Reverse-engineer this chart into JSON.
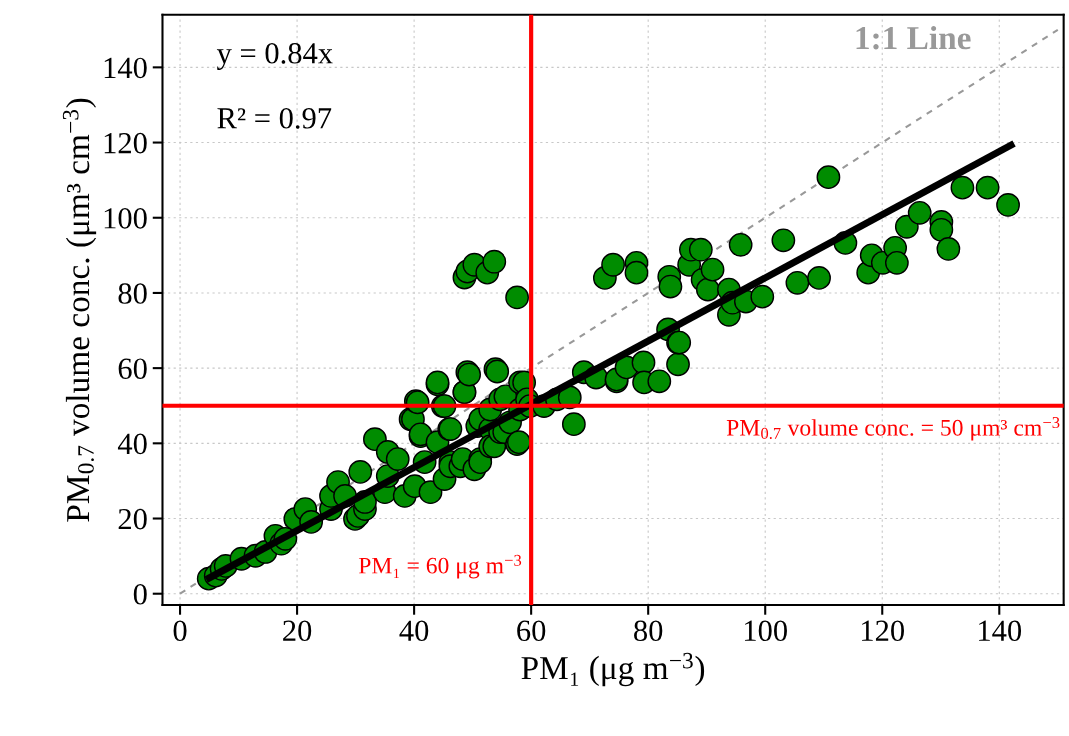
{
  "chart_data": {
    "type": "scatter",
    "xlabel": "PM₁ (μg m$^{−3}$)",
    "ylabel": "PM$_{0.7}$ volume conc. (μm³ cm$^{−3}$)",
    "xlim": [
      -3,
      151
    ],
    "ylim": [
      -3,
      154
    ],
    "xticks": [
      0,
      20,
      40,
      60,
      80,
      100,
      120,
      140
    ],
    "yticks": [
      0,
      20,
      40,
      60,
      80,
      100,
      120,
      140
    ],
    "grid": true,
    "annotations": [
      "y = 0.84x",
      "R² = 0.97"
    ],
    "ref_lines": [
      {
        "axis": "x",
        "value": 60,
        "label": "PM₁ = 60 μg m$^{−3}$",
        "color": "#ff0000"
      },
      {
        "axis": "y",
        "value": 50,
        "label": "PM$_{0.7}$ volume conc. = 50 μm³ cm$^{−3}$",
        "color": "#ff0000"
      }
    ],
    "series": [
      {
        "color": "#008c00",
        "marker": "circle",
        "x": [
          4.9,
          6.1,
          7.1,
          7.8,
          10.5,
          12.9,
          14.6,
          16.3,
          17.3,
          18,
          19.7,
          21.4,
          22.4,
          25.8,
          25.8,
          27,
          28.2,
          29.9,
          30.4,
          30.8,
          31.6,
          31.6,
          33.3,
          35,
          35.5,
          35.5,
          37.2,
          38.4,
          39.4,
          39.8,
          40.1,
          40.3,
          40.6,
          41.1,
          41.1,
          41.8,
          42.8,
          44,
          44,
          44,
          44.9,
          45.2,
          45.2,
          46,
          46.2,
          46.2,
          46.2,
          47.9,
          48.3,
          48.6,
          48.6,
          48.6,
          49.1,
          49.1,
          49.4,
          50.3,
          50.3,
          50.8,
          51.3,
          51.3,
          51.3,
          52.5,
          53,
          53,
          53,
          53.7,
          53.7,
          53.9,
          54.2,
          54.7,
          54.7,
          55.4,
          55.6,
          56.4,
          57.6,
          57.6,
          57.9,
          58.1,
          58.1,
          58.8,
          59.3,
          59.8,
          62.2,
          64.4,
          66.6,
          67.3,
          69,
          71.1,
          72.6,
          74,
          74.6,
          74.6,
          76.3,
          78,
          78,
          79.2,
          79.3,
          81.9,
          83.4,
          83.6,
          83.8,
          85.1,
          85.1,
          85.3,
          87,
          87.3,
          89,
          89.3,
          90.2,
          91,
          93.8,
          93.8,
          94.4,
          95.8,
          96.7,
          99.5,
          103.1,
          105.5,
          109.2,
          110.8,
          113.7,
          117.6,
          118.2,
          120.1,
          122.2,
          122.5,
          124.2,
          126.4,
          130.1,
          130.1,
          131.3,
          133.7,
          138,
          141.5
        ],
        "values": [
          4,
          4.8,
          6.6,
          7.4,
          9.3,
          10.1,
          11.1,
          15.4,
          13.3,
          14.6,
          19.9,
          22.5,
          19.1,
          22.5,
          26,
          29.7,
          26,
          19.9,
          20.7,
          32.4,
          22.5,
          24.4,
          41.1,
          27,
          37.7,
          31.3,
          35.8,
          26,
          46.4,
          46.4,
          28.6,
          51.2,
          50.9,
          41.9,
          42.4,
          35,
          27,
          55.7,
          56.2,
          40.3,
          49.9,
          49.9,
          30.5,
          43.8,
          43.8,
          35,
          33.9,
          33.9,
          35.8,
          53.6,
          84.1,
          53.6,
          85.7,
          58.9,
          58.3,
          87.5,
          33.1,
          44.6,
          35.8,
          35,
          46.4,
          85.4,
          43.8,
          49,
          39.2,
          88.3,
          39.2,
          59.7,
          59.1,
          43,
          51.7,
          43,
          52.5,
          45.6,
          78.8,
          39.8,
          40.3,
          49,
          56.2,
          56.2,
          51.7,
          49.9,
          49.9,
          51.7,
          52.2,
          45.1,
          58.9,
          57.5,
          84,
          87.5,
          56.5,
          57,
          60.2,
          88,
          85.4,
          61.5,
          56.2,
          56.5,
          70.3,
          84.3,
          81.7,
          61,
          66.8,
          66.8,
          87.5,
          91.5,
          91.5,
          83.5,
          80.9,
          86.2,
          74.2,
          80.9,
          77.4,
          92.8,
          77.7,
          79,
          94,
          82.7,
          84,
          110.8,
          93.3,
          85.4,
          90,
          88,
          92,
          88,
          97.6,
          101.3,
          98.9,
          96.8,
          91.7,
          108,
          108,
          103.4
        ]
      },
      {
        "type": "line",
        "color": "#000000",
        "line_style": "solid",
        "x": [
          5,
          142
        ],
        "values": [
          4.2,
          119.3
        ]
      },
      {
        "type": "line",
        "name": "1:1 Line",
        "color": "#999999",
        "line_style": "dashed",
        "x": [
          0,
          150
        ],
        "values": [
          0,
          150
        ]
      }
    ]
  }
}
